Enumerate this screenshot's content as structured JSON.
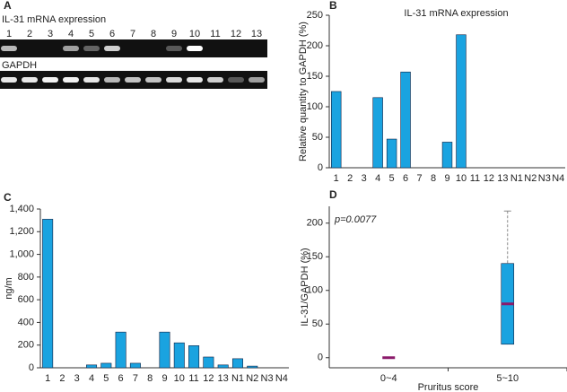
{
  "gel": {
    "panel": "A",
    "title": "IL-31 mRNA expression",
    "lanes": [
      "1",
      "2",
      "3",
      "4",
      "5",
      "6",
      "7",
      "8",
      "9",
      "10",
      "11",
      "12",
      "13"
    ],
    "control": "GAPDH"
  },
  "chart_data": [
    {
      "type": "bar",
      "panel": "B",
      "title": "IL-31 mRNA expression",
      "ylabel": "Relative quantity to GAPDH (%)",
      "categories": [
        "1",
        "2",
        "3",
        "4",
        "5",
        "6",
        "7",
        "8",
        "9",
        "10",
        "11",
        "12",
        "13",
        "N1",
        "N2",
        "N3",
        "N4"
      ],
      "values": [
        125,
        0,
        0,
        115,
        47,
        157,
        0,
        0,
        42,
        218,
        0,
        0,
        0,
        0,
        0,
        0,
        0
      ],
      "color": "#1aa3e0",
      "ylim": [
        0,
        250
      ],
      "yticks": [
        0,
        50,
        100,
        150,
        200,
        250
      ]
    },
    {
      "type": "bar",
      "panel": "C",
      "ylabel": "ng/m",
      "categories": [
        "1",
        "2",
        "3",
        "4",
        "5",
        "6",
        "7",
        "8",
        "9",
        "10",
        "11",
        "12",
        "13",
        "N1",
        "N2",
        "N3",
        "N4"
      ],
      "values": [
        1310,
        0,
        0,
        25,
        40,
        315,
        40,
        0,
        315,
        220,
        195,
        95,
        25,
        80,
        15,
        0,
        0
      ],
      "color": "#1aa3e0",
      "ylim": [
        0,
        1400
      ],
      "yticks": [
        0,
        200,
        400,
        600,
        800,
        {
          "value": 1000,
          "label": "1,000"
        },
        {
          "value": 1200,
          "label": "1,200"
        },
        {
          "value": 1400,
          "label": "1,400"
        }
      ]
    },
    {
      "type": "box",
      "panel": "D",
      "ylabel": "IL-31/GAPDH (%)",
      "xlabel": "Pruritus score",
      "annotation": "p=0.0077",
      "categories": [
        "0~4",
        "5~10"
      ],
      "color": "#1aa3e0",
      "median_color": "#8b1a6b",
      "boxes": [
        {
          "min": 0,
          "q1": 0,
          "median": 0,
          "q3": 0,
          "max": 0
        },
        {
          "min": 20,
          "q1": 20,
          "median": 80,
          "q3": 140,
          "max": 218
        }
      ],
      "ylim": [
        -15,
        225
      ],
      "yticks": [
        0,
        50,
        100,
        150,
        200
      ]
    }
  ]
}
